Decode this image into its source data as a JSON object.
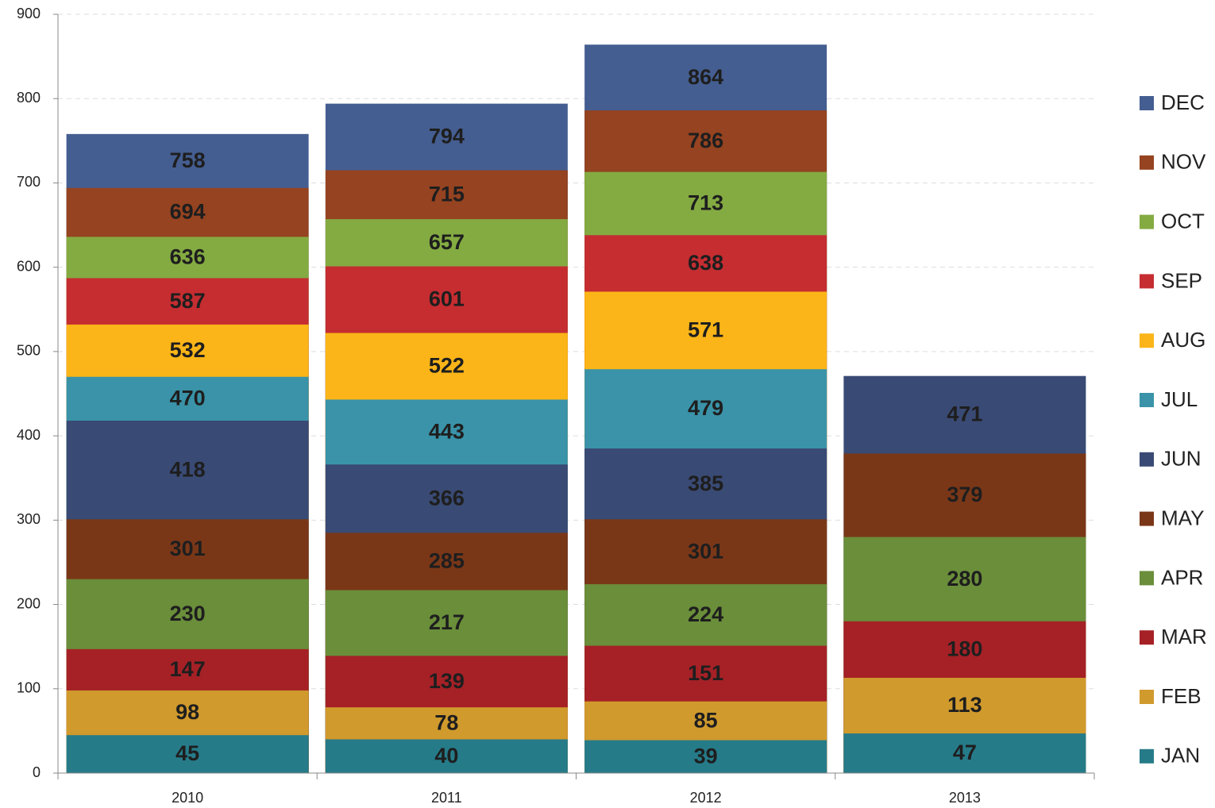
{
  "chart_data": {
    "type": "bar",
    "overlap": true,
    "categories": [
      "2010",
      "2011",
      "2012",
      "2013"
    ],
    "series": [
      {
        "name": "JAN",
        "color": "#267b89",
        "values": [
          45,
          40,
          39,
          47
        ]
      },
      {
        "name": "FEB",
        "color": "#d09a2d",
        "values": [
          98,
          78,
          85,
          113
        ]
      },
      {
        "name": "MAR",
        "color": "#a52126",
        "values": [
          147,
          139,
          151,
          180
        ]
      },
      {
        "name": "APR",
        "color": "#6a8e3a",
        "values": [
          230,
          217,
          224,
          280
        ]
      },
      {
        "name": "MAY",
        "color": "#7a3718",
        "values": [
          301,
          285,
          301,
          379
        ]
      },
      {
        "name": "JUN",
        "color": "#394a74",
        "values": [
          418,
          366,
          385,
          471
        ]
      },
      {
        "name": "JUL",
        "color": "#3a93a8",
        "values": [
          470,
          443,
          479,
          null
        ]
      },
      {
        "name": "AUG",
        "color": "#fbb518",
        "values": [
          532,
          522,
          571,
          null
        ]
      },
      {
        "name": "SEP",
        "color": "#c52d31",
        "values": [
          587,
          601,
          638,
          null
        ]
      },
      {
        "name": "OCT",
        "color": "#84ab42",
        "values": [
          636,
          657,
          713,
          null
        ]
      },
      {
        "name": "NOV",
        "color": "#954320",
        "values": [
          694,
          715,
          786,
          null
        ]
      },
      {
        "name": "DEC",
        "color": "#455e91",
        "values": [
          758,
          794,
          864,
          null
        ]
      }
    ],
    "ylim": [
      0,
      900
    ],
    "yticks": [
      0,
      100,
      200,
      300,
      400,
      500,
      600,
      700,
      800,
      900
    ],
    "grid": true,
    "legend": "right",
    "data_labels": true
  }
}
